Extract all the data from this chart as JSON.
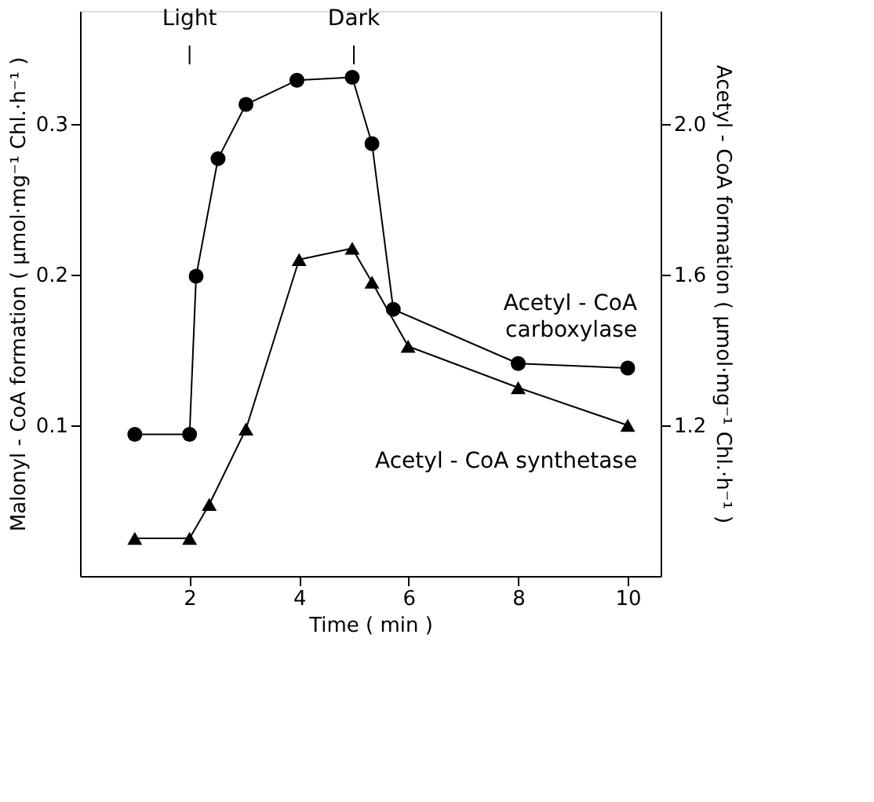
{
  "chart_data": {
    "type": "line",
    "xlabel": "Time ( min )",
    "ylabel": "Malonyl - CoA formation ( μmol·mg⁻¹ Chl.·h⁻¹ )",
    "y2label": "Acetyl - CoA formation ( μmol·mg⁻¹ Chl.·h⁻¹ )",
    "xlim": [
      0,
      10.6
    ],
    "xticks": [
      2,
      4,
      6,
      8,
      10
    ],
    "ylim": [
      0,
      0.375
    ],
    "yticks": [
      0.1,
      0.2,
      0.3
    ],
    "y2lim": [
      0.8,
      2.3
    ],
    "y2ticks": [
      1.2,
      1.6,
      {
        "value": 2,
        "label": "2.0"
      }
    ],
    "series": [
      {
        "name": "Acetyl - CoA carboxylase",
        "color": "#000000",
        "marker": "circle",
        "x": [
          1,
          2,
          2.12,
          2.52,
          3.03,
          3.96,
          4.97,
          5.33,
          5.72,
          8,
          10
        ],
        "values": [
          0.094,
          0.094,
          0.199,
          0.277,
          0.313,
          0.329,
          0.331,
          0.287,
          0.177,
          0.141,
          0.138
        ]
      },
      {
        "name": "Acetyl - CoA synthetase",
        "color": "#000000",
        "marker": "triangle",
        "axis": "y2",
        "x": [
          1,
          2,
          2.36,
          3.03,
          4.0,
          4.97,
          5.33,
          5.99,
          8,
          10
        ],
        "values": [
          0.9,
          0.9,
          0.99,
          1.19,
          1.64,
          1.67,
          1.58,
          1.41,
          1.3,
          1.2
        ]
      }
    ],
    "ref_lines": [
      {
        "axis": "x",
        "value": 2,
        "label": "Light"
      },
      {
        "axis": "x",
        "value": 5,
        "label": "Dark"
      }
    ],
    "grid": false,
    "legend": false,
    "line_style": "solid"
  }
}
